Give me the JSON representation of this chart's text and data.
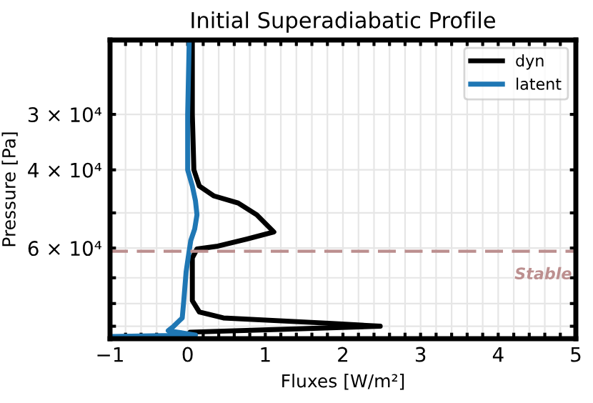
{
  "chart_data": {
    "type": "line",
    "title": "Initial Superadiabatic Profile",
    "xlabel": "Fluxes [W/m²]",
    "ylabel": "Pressure [Pa]",
    "series": [
      {
        "name": "dyn",
        "color": "#000000",
        "x": [
          0.06,
          0.06,
          0.08,
          0.15,
          0.34,
          0.65,
          0.89,
          1.11,
          0.76,
          0.39,
          0.12,
          0.06,
          0.06,
          0.15,
          0.46,
          1.86,
          2.48,
          1.26,
          0.03,
          0.0
        ],
        "values": [
          20500,
          30000,
          40000,
          43500,
          45800,
          47500,
          50500,
          55200,
          57300,
          59400,
          60300,
          63100,
          78800,
          83600,
          86200,
          88700,
          90000,
          91400,
          92800,
          94200
        ]
      },
      {
        "name": "latent",
        "color": "#1f77b4",
        "x": [
          0.02,
          0.0,
          0.0,
          0.06,
          0.1,
          0.12,
          0.09,
          0.04,
          0.02,
          -0.02,
          -0.05,
          -0.07,
          -0.18,
          -0.25,
          0.1,
          -1.0
        ],
        "values": [
          20500,
          30000,
          40000,
          43500,
          46900,
          50500,
          54400,
          57700,
          60800,
          67900,
          78800,
          86200,
          90000,
          92100,
          94200,
          94900
        ]
      }
    ],
    "log": "y",
    "ylim": [
      96000,
      20400
    ],
    "yticks": [
      {
        "value": 30000,
        "label": "3 × 10⁴"
      },
      {
        "value": 40000,
        "label": "4 × 10⁴"
      },
      {
        "value": 50000,
        "label": null
      },
      {
        "value": 60000,
        "label": "6 × 10⁴"
      },
      {
        "value": 70000,
        "label": null
      },
      {
        "value": 80000,
        "label": null
      },
      {
        "value": 90000,
        "label": null
      }
    ],
    "xlim": [
      -1,
      5
    ],
    "xticks": [
      -1,
      {
        "value": -0.8,
        "label": null
      },
      {
        "value": -0.6,
        "label": null
      },
      {
        "value": -0.4,
        "label": null
      },
      {
        "value": -0.2,
        "label": null
      },
      0,
      {
        "value": 0.2,
        "label": null
      },
      {
        "value": 0.4,
        "label": null
      },
      {
        "value": 0.6,
        "label": null
      },
      {
        "value": 0.8,
        "label": null
      },
      1,
      {
        "value": 1.2,
        "label": null
      },
      {
        "value": 1.4,
        "label": null
      },
      {
        "value": 1.6,
        "label": null
      },
      {
        "value": 1.8,
        "label": null
      },
      2,
      {
        "value": 2.2,
        "label": null
      },
      {
        "value": 2.4,
        "label": null
      },
      {
        "value": 2.6,
        "label": null
      },
      {
        "value": 2.8,
        "label": null
      },
      3,
      {
        "value": 3.2,
        "label": null
      },
      {
        "value": 3.4,
        "label": null
      },
      {
        "value": 3.6,
        "label": null
      },
      {
        "value": 3.8,
        "label": null
      },
      4,
      {
        "value": 4.2,
        "label": null
      },
      {
        "value": 4.4,
        "label": null
      },
      {
        "value": 4.6,
        "label": null
      },
      {
        "value": 4.8,
        "label": null
      },
      5
    ],
    "ref_lines": [
      {
        "axis": "y",
        "value": 61000,
        "label": "Stable",
        "color": "#bc8f8f",
        "line_style": "dashed"
      }
    ],
    "grid": true,
    "legend": "top right",
    "marker": "none",
    "line_style": "solid"
  }
}
